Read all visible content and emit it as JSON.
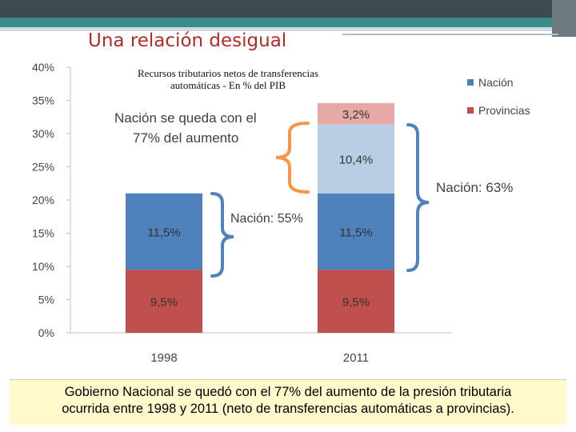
{
  "slide": {
    "title": "Una relación desigual",
    "caption_line1": "Gobierno Nacional se quedó con el 77% del aumento de la presión tributaria",
    "caption_line2": "ocurrida entre 1998 y 2011 (neto de transferencias automáticas a  provincias)."
  },
  "chart_data": {
    "type": "bar",
    "stacked": true,
    "title": "Recursos tributarios netos de transferencias automáticas - En % del PIB",
    "title_line1": "Recursos tributarios netos de transferencias",
    "title_line2": "automáticas - En % del PIB",
    "xlabel": "",
    "ylabel": "",
    "categories": [
      "1998",
      "2011"
    ],
    "ylim": [
      0,
      40
    ],
    "yticks": [
      0,
      5,
      10,
      15,
      20,
      25,
      30,
      35,
      40
    ],
    "ytick_labels": [
      "0%",
      "5%",
      "10%",
      "15%",
      "20%",
      "25%",
      "30%",
      "35%",
      "40%"
    ],
    "grid": false,
    "legend_position": "right",
    "legend": [
      {
        "name": "Nación",
        "color": "#4f81bd"
      },
      {
        "name": "Provincias",
        "color": "#c0504d"
      }
    ],
    "segments": [
      {
        "category": "1998",
        "value": 9.5,
        "label": "9,5%",
        "color": "#c0504d"
      },
      {
        "category": "1998",
        "value": 11.5,
        "label": "11,5%",
        "color": "#4f81bd"
      },
      {
        "category": "2011",
        "value": 9.5,
        "label": "9,5%",
        "color": "#c0504d"
      },
      {
        "category": "2011",
        "value": 11.5,
        "label": "11,5%",
        "color": "#4f81bd"
      },
      {
        "category": "2011",
        "value": 10.4,
        "label": "10,4%",
        "color": "#b9cde5"
      },
      {
        "category": "2011",
        "value": 3.2,
        "label": "3,2%",
        "color": "#e6a9a6"
      }
    ],
    "annotations": {
      "increase_line1": "Nación se queda con el",
      "increase_line2": "77% del aumento",
      "nation_1998": "Nación: 55%",
      "nation_2011": "Nación:  63%"
    }
  }
}
